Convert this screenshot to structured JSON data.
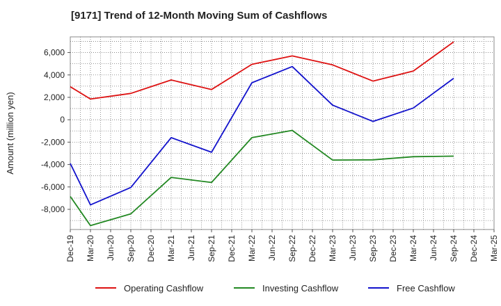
{
  "chart_data": {
    "type": "line",
    "title": "[9171]  Trend of 12-Month Moving Sum of Cashflows",
    "xlabel": "",
    "ylabel": "Amount (million yen)",
    "categories": [
      "Dec-19",
      "Mar-20",
      "Jun-20",
      "Sep-20",
      "Dec-20",
      "Mar-21",
      "Jun-21",
      "Sep-21",
      "Dec-21",
      "Mar-22",
      "Jun-22",
      "Sep-22",
      "Dec-22",
      "Mar-23",
      "Jun-23",
      "Sep-23",
      "Dec-23",
      "Mar-24",
      "Jun-24",
      "Sep-24",
      "Dec-24",
      "Mar-25"
    ],
    "yticks": [
      -8000,
      -6000,
      -4000,
      -2000,
      0,
      2000,
      4000,
      6000
    ],
    "ytick_labels": [
      "-8,000",
      "-6,000",
      "-4,000",
      "-2,000",
      "0",
      "2,000",
      "4,000",
      "6,000"
    ],
    "ylim": [
      -9800,
      7400
    ],
    "grid": true,
    "legend_position": "bottom",
    "series": [
      {
        "name": "Operating Cashflow",
        "color": "#dd1111",
        "values": [
          2950,
          1850,
          null,
          2350,
          null,
          3550,
          null,
          2700,
          null,
          4950,
          null,
          5700,
          null,
          4900,
          null,
          3450,
          null,
          4350,
          null,
          6950,
          null,
          null
        ]
      },
      {
        "name": "Investing Cashflow",
        "color": "#228822",
        "values": [
          -6850,
          -9450,
          null,
          -8400,
          null,
          -5150,
          null,
          -5600,
          null,
          -1600,
          null,
          -950,
          null,
          -3600,
          null,
          -3580,
          null,
          -3300,
          null,
          -3250,
          null,
          null
        ]
      },
      {
        "name": "Free Cashflow",
        "color": "#1111cc",
        "values": [
          -3900,
          -7600,
          null,
          -6050,
          null,
          -1600,
          null,
          -2900,
          null,
          3300,
          null,
          4750,
          null,
          1300,
          null,
          -150,
          null,
          1050,
          null,
          3700,
          null,
          null
        ]
      }
    ]
  }
}
